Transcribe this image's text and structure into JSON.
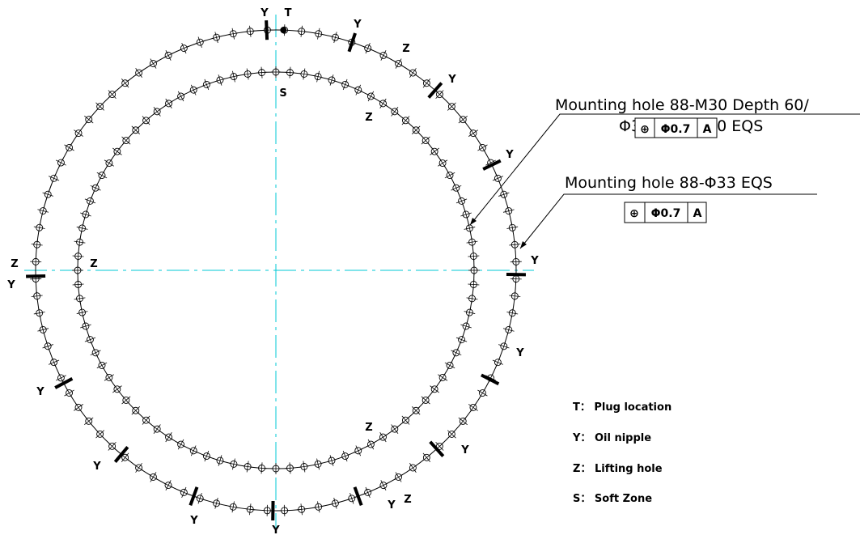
{
  "colors": {
    "centerline": "#00c8d6",
    "drawing": "#000000",
    "background": "#ffffff"
  },
  "outer_ring": {
    "hole_count": 88,
    "callout_text": "Mounting hole 88-Φ33 EQS",
    "fcf": {
      "symbol": "⊕",
      "tolerance": "Φ0.7",
      "datum": "A"
    }
  },
  "inner_ring": {
    "hole_count": 88,
    "callout_line1": "Mounting hole 88-M30 Depth 60/",
    "callout_line2": "Φ33 Depth 50 EQS",
    "fcf": {
      "symbol": "⊕",
      "tolerance": "Φ0.7",
      "datum": "A"
    }
  },
  "outer_marks": [
    {
      "code": "Y"
    },
    {
      "code": "T"
    },
    {
      "code": "Y"
    },
    {
      "code": "Y"
    },
    {
      "code": "Y"
    },
    {
      "code": "Y"
    },
    {
      "code": "Y"
    },
    {
      "code": "Y"
    },
    {
      "code": "Y"
    },
    {
      "code": "Y"
    },
    {
      "code": "Y"
    },
    {
      "code": "Y"
    },
    {
      "code": "Y"
    },
    {
      "code": "Y"
    },
    {
      "code": "Z"
    },
    {
      "code": "Z"
    }
  ],
  "inner_marks": [
    {
      "code": "S"
    },
    {
      "code": "Z"
    },
    {
      "code": "Z"
    },
    {
      "code": "Z"
    }
  ],
  "legend": [
    {
      "code": "T",
      "label": "Plug location"
    },
    {
      "code": "Y",
      "label": "Oil nipple"
    },
    {
      "code": "Z",
      "label": "Lifting hole"
    },
    {
      "code": "S",
      "label": "Soft Zone"
    }
  ]
}
